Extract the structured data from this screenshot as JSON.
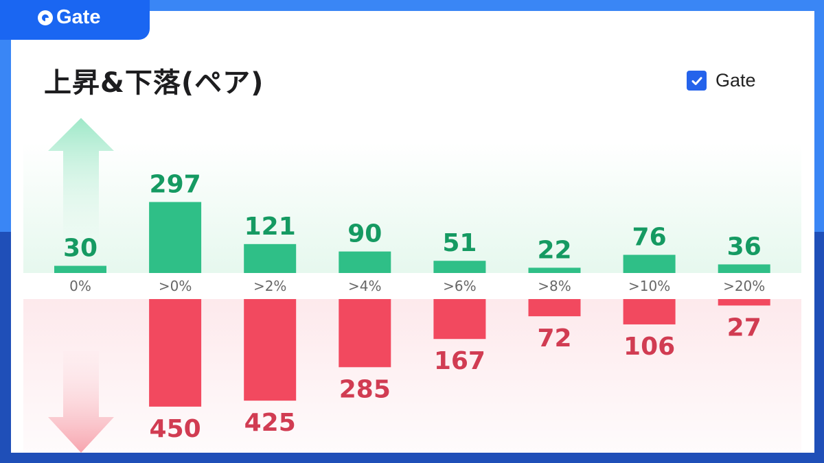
{
  "brand": {
    "name": "Gate"
  },
  "header": {
    "title": "上昇&下落(ペア)"
  },
  "legend": {
    "label": "Gate",
    "checked": true
  },
  "icons": {
    "up_arrow": "up-arrow-icon",
    "down_arrow": "down-arrow-icon",
    "checkbox": "checkbox-checked-icon",
    "logo": "gate-logo-icon"
  },
  "colors": {
    "up": "#2fbf87",
    "up_label": "#159a62",
    "down": "#f2495f",
    "down_label": "#d13c52",
    "axis_label": "#666666",
    "brand": "#1a66f2"
  },
  "chart_data": {
    "type": "bar",
    "title": "上昇&下落(ペア)",
    "categories": [
      "0%",
      ">0%",
      ">2%",
      ">4%",
      ">6%",
      ">8%",
      ">10%",
      ">20%"
    ],
    "series": [
      {
        "name": "上昇",
        "values": [
          30,
          297,
          121,
          90,
          51,
          22,
          76,
          36
        ]
      },
      {
        "name": "下落",
        "values": [
          null,
          450,
          425,
          285,
          167,
          72,
          106,
          27
        ]
      }
    ],
    "legend": [
      "Gate"
    ],
    "legend_position": "top-right",
    "grid": false
  }
}
